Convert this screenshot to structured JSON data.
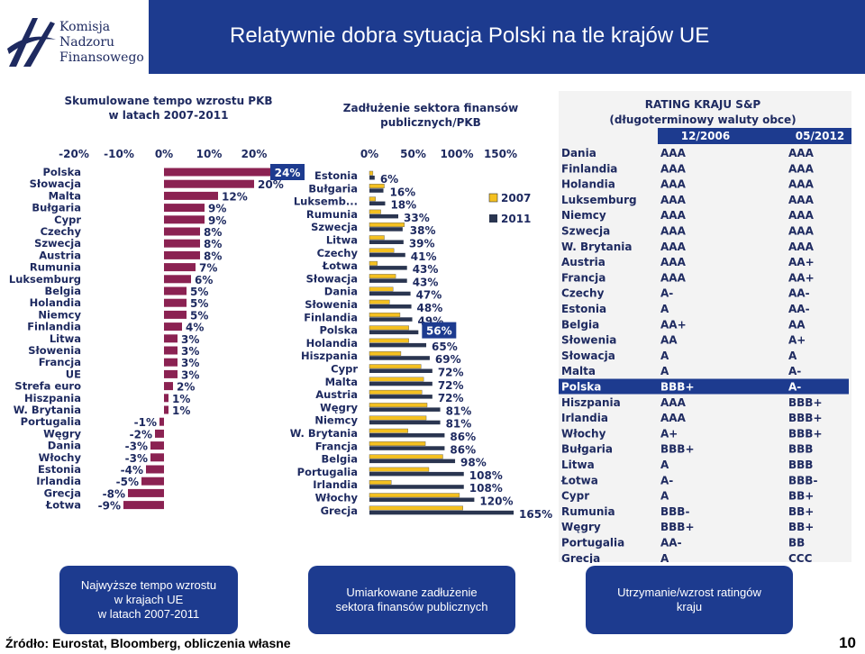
{
  "header": {
    "logo_lines": [
      "Komisja",
      "Nadzoru",
      "Finansowego"
    ],
    "title": "Relatywnie dobra sytuacja Polski na tle krajów UE"
  },
  "colors": {
    "navy": "#1d3b8f",
    "maroon": "#8b2252",
    "gold": "#f4c020",
    "dark": "#2a3550",
    "rating_header": "#1d3b8f",
    "highlight": "#1d3b8f"
  },
  "chart_data": [
    {
      "type": "bar",
      "orientation": "horizontal",
      "title": "Skumulowane tempo wzrostu PKB w latach 2007-2011",
      "title_lines": [
        "Skumulowane tempo wzrostu PKB",
        "w latach 2007-2011"
      ],
      "xticks": [
        "-20%",
        "-10%",
        "0%",
        "10%",
        "20%"
      ],
      "xlim": [
        -20,
        24
      ],
      "categories": [
        "Polska",
        "Słowacja",
        "Malta",
        "Bułgaria",
        "Cypr",
        "Czechy",
        "Szwecja",
        "Austria",
        "Rumunia",
        "Luksemburg",
        "Belgia",
        "Holandia",
        "Niemcy",
        "Finlandia",
        "Litwa",
        "Słowenia",
        "Francja",
        "UE",
        "Strefa euro",
        "Hiszpania",
        "W. Brytania",
        "Portugalia",
        "Węgry",
        "Dania",
        "Włochy",
        "Estonia",
        "Irlandia",
        "Grecja",
        "Łotwa"
      ],
      "values": [
        24,
        20,
        12,
        9,
        9,
        8,
        8,
        8,
        7,
        6,
        5,
        5,
        5,
        4,
        3,
        3,
        3,
        3,
        2,
        1,
        1,
        -1,
        -2,
        -3,
        -3,
        -4,
        -5,
        -8,
        -9
      ],
      "labels": [
        "24%",
        "20%",
        "12%",
        "9%",
        "9%",
        "8%",
        "8%",
        "8%",
        "7%",
        "6%",
        "5%",
        "5%",
        "5%",
        "4%",
        "3%",
        "3%",
        "3%",
        "3%",
        "2%",
        "1%",
        "1%",
        "-1%",
        "-2%",
        "-3%",
        "-3%",
        "-4%",
        "-5%",
        "-8%",
        "-9%"
      ],
      "highlight": "Polska"
    },
    {
      "type": "bar",
      "orientation": "horizontal",
      "title": "Zadłużenie sektora finansów publicznych/PKB",
      "title_lines": [
        "Zadłużenie sektora finansów",
        "publicznych/PKB"
      ],
      "xticks": [
        "0%",
        "50%",
        "100%",
        "150%"
      ],
      "xlim": [
        0,
        170
      ],
      "categories": [
        "Estonia",
        "Bułgaria",
        "Luksemb...",
        "Rumunia",
        "Szwecja",
        "Litwa",
        "Czechy",
        "Łotwa",
        "Słowacja",
        "Dania",
        "Słowenia",
        "Finlandia",
        "Polska",
        "Holandia",
        "Hiszpania",
        "Cypr",
        "Malta",
        "Austria",
        "Węgry",
        "Niemcy",
        "W. Brytania",
        "Francja",
        "Belgia",
        "Portugalia",
        "Irlandia",
        "Włochy",
        "Grecja"
      ],
      "series": [
        {
          "name": "2007",
          "values": [
            4,
            17,
            7,
            13,
            40,
            17,
            28,
            9,
            30,
            27,
            23,
            35,
            45,
            45,
            36,
            59,
            62,
            60,
            66,
            65,
            44,
            64,
            84,
            68,
            25,
            103,
            107
          ]
        },
        {
          "name": "2011",
          "values": [
            6,
            16,
            18,
            33,
            38,
            39,
            41,
            43,
            43,
            47,
            48,
            49,
            56,
            65,
            69,
            72,
            72,
            72,
            81,
            81,
            86,
            86,
            98,
            108,
            108,
            120,
            165
          ]
        }
      ],
      "labels": [
        "6%",
        "16%",
        "18%",
        "33%",
        "38%",
        "39%",
        "41%",
        "43%",
        "43%",
        "47%",
        "48%",
        "49%",
        "56%",
        "65%",
        "69%",
        "72%",
        "72%",
        "72%",
        "81%",
        "81%",
        "86%",
        "86%",
        "98%",
        "108%",
        "108%",
        "120%",
        "165%"
      ],
      "highlight": "Polska"
    },
    {
      "type": "table",
      "title": "RATING KRAJU S&P (długoterminowy waluty obce)",
      "title_lines": [
        "RATING KRAJU S&P",
        "(długoterminowy waluty obce)"
      ],
      "columns": [
        "12/2006",
        "05/2012"
      ],
      "rows": [
        [
          "Dania",
          "AAA",
          "AAA"
        ],
        [
          "Finlandia",
          "AAA",
          "AAA"
        ],
        [
          "Holandia",
          "AAA",
          "AAA"
        ],
        [
          "Luksemburg",
          "AAA",
          "AAA"
        ],
        [
          "Niemcy",
          "AAA",
          "AAA"
        ],
        [
          "Szwecja",
          "AAA",
          "AAA"
        ],
        [
          "W. Brytania",
          "AAA",
          "AAA"
        ],
        [
          "Austria",
          "AAA",
          "AA+"
        ],
        [
          "Francja",
          "AAA",
          "AA+"
        ],
        [
          "Czechy",
          "A-",
          "AA-"
        ],
        [
          "Estonia",
          "A",
          "AA-"
        ],
        [
          "Belgia",
          "AA+",
          "AA"
        ],
        [
          "Słowenia",
          "AA",
          "A+"
        ],
        [
          "Słowacja",
          "A",
          "A"
        ],
        [
          "Malta",
          "A",
          "A-"
        ],
        [
          "Polska",
          "BBB+",
          "A-"
        ],
        [
          "Hiszpania",
          "AAA",
          "BBB+"
        ],
        [
          "Irlandia",
          "AAA",
          "BBB+"
        ],
        [
          "Włochy",
          "A+",
          "BBB+"
        ],
        [
          "Bułgaria",
          "BBB+",
          "BBB"
        ],
        [
          "Litwa",
          "A",
          "BBB"
        ],
        [
          "Łotwa",
          "A-",
          "BBB-"
        ],
        [
          "Cypr",
          "A",
          "BB+"
        ],
        [
          "Rumunia",
          "BBB-",
          "BB+"
        ],
        [
          "Węgry",
          "BBB+",
          "BB+"
        ],
        [
          "Portugalia",
          "AA-",
          "BB"
        ],
        [
          "Grecja",
          "A",
          "CCC"
        ]
      ],
      "highlight": "Polska"
    }
  ],
  "bubbles": [
    {
      "lines": [
        "Najwyższe tempo wzrostu",
        "w krajach UE",
        "w latach 2007-2011"
      ]
    },
    {
      "lines": [
        "Umiarkowane zadłużenie",
        "sektora finansów publicznych"
      ]
    },
    {
      "lines": [
        "Utrzymanie/wzrost ratingów",
        "kraju"
      ]
    }
  ],
  "footer": {
    "source": "Źródło: Eurostat, Bloomberg, obliczenia własne",
    "page": "10"
  }
}
